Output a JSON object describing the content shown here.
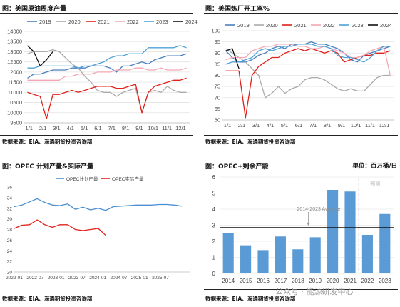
{
  "panels": {
    "p1": {
      "title": "图：美国原油周度产量",
      "source": "数据来源：EIA、海通期货投资咨询部"
    },
    "p2": {
      "title": "图：美国炼厂开工率%",
      "source": "数据来源：EIA、海通期货投资咨询部"
    },
    "p3": {
      "title": "图：OPEC 计划产量&实际产量",
      "source": "数据来源：EIA、海通期货投资咨询部"
    },
    "p4": {
      "title": "图：OPEC+剩余产能",
      "unit": "单位：百万桶/日",
      "source": "数据来源：EIA、海通期货投资咨询部"
    }
  },
  "watermark": "公众号 · 能源研发中心",
  "chart_data": [
    {
      "id": "us-crude-weekly-production",
      "type": "line",
      "xlabel": "",
      "ylabel": "",
      "ylim": [
        9500,
        14000
      ],
      "yticks": [
        9500,
        10000,
        10500,
        11000,
        11500,
        12000,
        12500,
        13000,
        13500,
        14000
      ],
      "xticks": [
        "1/1",
        "2/1",
        "3/1",
        "4/1",
        "5/1",
        "6/1",
        "7/1",
        "8/1",
        "9/1",
        "10/1",
        "11/1",
        "12/1"
      ],
      "legend_position": "top",
      "grid": "horizontal",
      "x": [
        1,
        3,
        5,
        7,
        9,
        11,
        13,
        15,
        17,
        19,
        21,
        23,
        25,
        27,
        29,
        31,
        33,
        35,
        37,
        39,
        41,
        43,
        45,
        47,
        49,
        51
      ],
      "series": [
        {
          "name": "2019",
          "color": "#4a7fc1",
          "values": [
            11700,
            11900,
            11900,
            12000,
            12100,
            12100,
            12100,
            12200,
            12200,
            12200,
            12300,
            12300,
            12300,
            12200,
            12000,
            12300,
            12300,
            12400,
            12500,
            12400,
            12600,
            12700,
            12800,
            12800,
            12800,
            12900
          ]
        },
        {
          "name": "2020",
          "color": "#aaaaaa",
          "values": [
            12900,
            13000,
            13000,
            13000,
            13100,
            13000,
            12700,
            12400,
            12200,
            11800,
            11500,
            11100,
            11000,
            11000,
            10800,
            11000,
            11100,
            11200,
            10000,
            11000,
            11100,
            11000,
            11300,
            11100,
            11000,
            11000
          ]
        },
        {
          "name": "2021",
          "color": "#e0201a",
          "values": [
            11000,
            10900,
            10800,
            9700,
            10900,
            10900,
            11000,
            11100,
            11000,
            11100,
            11200,
            11300,
            11300,
            11300,
            11200,
            11200,
            11300,
            11400,
            10000,
            11000,
            11300,
            11400,
            11500,
            11600,
            11600,
            11700
          ]
        },
        {
          "name": "2022",
          "color": "#f4a6b4",
          "values": [
            11600,
            11600,
            11600,
            11600,
            11600,
            11600,
            11800,
            11800,
            11900,
            11900,
            11900,
            12000,
            12000,
            12000,
            12100,
            12100,
            12100,
            12200,
            12200,
            12100,
            12100,
            12200,
            12100,
            12100,
            12100,
            12200
          ]
        },
        {
          "name": "2023",
          "color": "#4da3d8",
          "values": [
            12200,
            12200,
            12300,
            12300,
            12300,
            12300,
            12300,
            12300,
            12200,
            12300,
            12300,
            12400,
            12500,
            12700,
            12800,
            12800,
            12900,
            12900,
            12900,
            13200,
            13200,
            13200,
            13200,
            13200,
            13300,
            13200
          ]
        },
        {
          "name": "2024",
          "color": "#111111",
          "values": [
            13300,
            13000,
            12300,
            12600,
            13000,
            null,
            null,
            null,
            null,
            null,
            null,
            null,
            null,
            null,
            null,
            null,
            null,
            null,
            null,
            null,
            null,
            null,
            null,
            null,
            null,
            null
          ]
        }
      ]
    },
    {
      "id": "us-refinery-utilization",
      "type": "line",
      "xlabel": "",
      "ylabel": "",
      "ylim": [
        60,
        100
      ],
      "yticks": [
        60,
        65,
        70,
        75,
        80,
        85,
        90,
        95,
        100
      ],
      "xticks": [
        "1/1",
        "2/1",
        "3/1",
        "4/1",
        "5/1",
        "6/1",
        "7/1",
        "8/1",
        "9/1",
        "10/1",
        "11/1",
        "12/1"
      ],
      "legend_position": "top",
      "grid": "horizontal",
      "x": [
        1,
        3,
        5,
        7,
        9,
        11,
        13,
        15,
        17,
        19,
        21,
        23,
        25,
        27,
        29,
        31,
        33,
        35,
        37,
        39,
        41,
        43,
        45,
        47,
        49,
        51
      ],
      "series": [
        {
          "name": "2019",
          "color": "#4a7fc1",
          "values": [
            91,
            88,
            86,
            86,
            87,
            89,
            90,
            92,
            93,
            92,
            94,
            94,
            94,
            95,
            94,
            94,
            93,
            92,
            90,
            87,
            86,
            89,
            90,
            91,
            92,
            93
          ]
        },
        {
          "name": "2020",
          "color": "#aaaaaa",
          "values": [
            92,
            90,
            88,
            86,
            83,
            80,
            70,
            72,
            75,
            72,
            74,
            75,
            78,
            79,
            79,
            78,
            76,
            74,
            73,
            74,
            73,
            73,
            76,
            79,
            80,
            80
          ]
        },
        {
          "name": "2021",
          "color": "#e0201a",
          "values": [
            82,
            82,
            82,
            61,
            80,
            84,
            86,
            88,
            88,
            90,
            91,
            92,
            91,
            92,
            91,
            90,
            91,
            90,
            86,
            87,
            88,
            89,
            89,
            90,
            90,
            91
          ]
        },
        {
          "name": "2022",
          "color": "#f4a6b4",
          "values": [
            87,
            88,
            88,
            88,
            91,
            92,
            93,
            93,
            94,
            94,
            94,
            93,
            93,
            92,
            92,
            93,
            92,
            91,
            90,
            88,
            88,
            89,
            91,
            92,
            93,
            80
          ]
        },
        {
          "name": "2023",
          "color": "#4da3d8",
          "values": [
            85,
            86,
            86,
            87,
            88,
            91,
            92,
            91,
            92,
            93,
            93,
            94,
            94,
            94,
            93,
            93,
            92,
            89,
            88,
            88,
            87,
            86,
            88,
            91,
            93,
            93
          ]
        },
        {
          "name": "2024",
          "color": "#111111",
          "values": [
            91,
            92,
            83,
            null,
            null,
            null,
            null,
            null,
            null,
            null,
            null,
            null,
            null,
            null,
            null,
            null,
            null,
            null,
            null,
            null,
            null,
            null,
            null,
            null,
            null,
            null
          ]
        }
      ]
    },
    {
      "id": "opec-planned-vs-actual",
      "type": "line",
      "xlabel": "",
      "ylabel": "",
      "ylim": [
        20,
        36
      ],
      "yticks": [
        20,
        22,
        24,
        26,
        28,
        30,
        32,
        34,
        36
      ],
      "xticks": [
        "2022-01",
        "2022-07",
        "2023-01",
        "2023-07",
        "2024-01",
        "2024-07",
        "2025-01",
        "2025-07"
      ],
      "legend_position": "top",
      "grid": "none",
      "x": [
        0,
        2,
        4,
        6,
        8,
        10,
        12,
        14,
        16,
        18,
        20,
        22,
        24,
        26,
        28,
        30,
        32,
        34,
        36,
        38,
        40,
        42,
        44
      ],
      "series": [
        {
          "name": "OPEC计划产量",
          "color": "#4a8fd0",
          "values": [
            32.3,
            32.6,
            33.2,
            33.8,
            33.1,
            32.6,
            32.5,
            32.8,
            31.8,
            32.2,
            31.7,
            32.0,
            31.6,
            32.3,
            32.4,
            32.5,
            32.6,
            32.6,
            32.6,
            32.7,
            32.7,
            32.6,
            32.4
          ]
        },
        {
          "name": "OPEC实际产量",
          "color": "#e0201a",
          "values": [
            28.2,
            28.8,
            28.9,
            29.8,
            28.9,
            28.4,
            28.9,
            28.9,
            28.0,
            27.8,
            28.0,
            28.2,
            26.9,
            null,
            null,
            null,
            null,
            null,
            null,
            null,
            null,
            null,
            null
          ]
        }
      ]
    },
    {
      "id": "opec-spare-capacity",
      "type": "bar",
      "xlabel": "",
      "ylabel": "",
      "ylim": [
        0,
        6
      ],
      "yticks": [
        0,
        1,
        2,
        3,
        4,
        5,
        6
      ],
      "grid": "horizontal",
      "categories": [
        "2014",
        "2015",
        "2016",
        "2017",
        "2018",
        "2019",
        "2020",
        "2021",
        "2022",
        "2023"
      ],
      "values": [
        2.5,
        1.75,
        1.45,
        2.3,
        1.5,
        2.25,
        5.2,
        5.1,
        2.4,
        3.7
      ],
      "bar_color": "#5b9bd5",
      "reference_line": {
        "value": 2.85,
        "label": "2014-2023 Average",
        "color": "#111111"
      },
      "forecast_divider": {
        "after_category": "2021",
        "label": "预测"
      }
    }
  ]
}
